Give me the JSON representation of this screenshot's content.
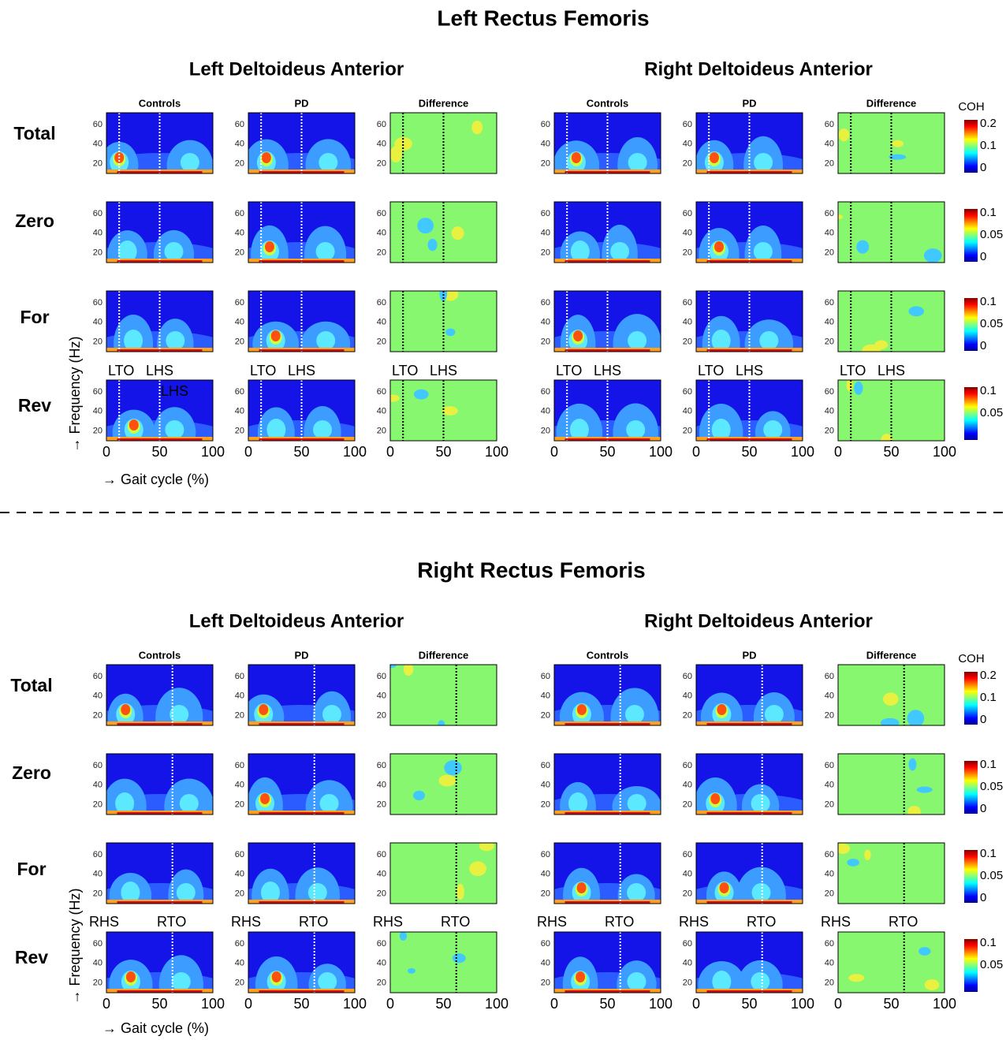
{
  "chart_data": {
    "type": "heatmap",
    "y_label": "→ Frequency (Hz)",
    "x_label": "→ Gait cycle (%)",
    "xlim": [
      0,
      100
    ],
    "xticks": [
      0,
      50,
      100
    ],
    "ylim": [
      10,
      72
    ],
    "yticks": [
      20,
      40,
      60
    ],
    "rows": [
      "Total",
      "Zero",
      "For",
      "Rev"
    ],
    "panels": [
      "Controls",
      "PD",
      "Difference"
    ],
    "colorbar_title": "COH",
    "colorbars": [
      {
        "clim": [
          0,
          0.2
        ],
        "ticks": [
          0,
          0.1,
          0.2
        ]
      },
      {
        "clim": [
          0,
          0.1
        ],
        "ticks": [
          0,
          0.05,
          0.1
        ]
      },
      {
        "clim": [
          0,
          0.1
        ],
        "ticks": [
          0,
          0.05,
          0.1
        ]
      },
      {
        "clim": [
          0,
          0.1
        ],
        "ticks": [
          0.05,
          0.1
        ]
      }
    ],
    "sections": [
      {
        "title": "Left Rectus Femoris",
        "groups": [
          "Left Deltoideus Anterior",
          "Right Deltoideus Anterior"
        ],
        "events": [
          "LTO",
          "LHS"
        ],
        "overlay_label": "LHS"
      },
      {
        "title": "Right Rectus Femoris",
        "groups": [
          "Left Deltoideus Anterior",
          "Right Deltoideus Anterior"
        ],
        "events": [
          "RHS",
          "RTO"
        ]
      }
    ]
  }
}
